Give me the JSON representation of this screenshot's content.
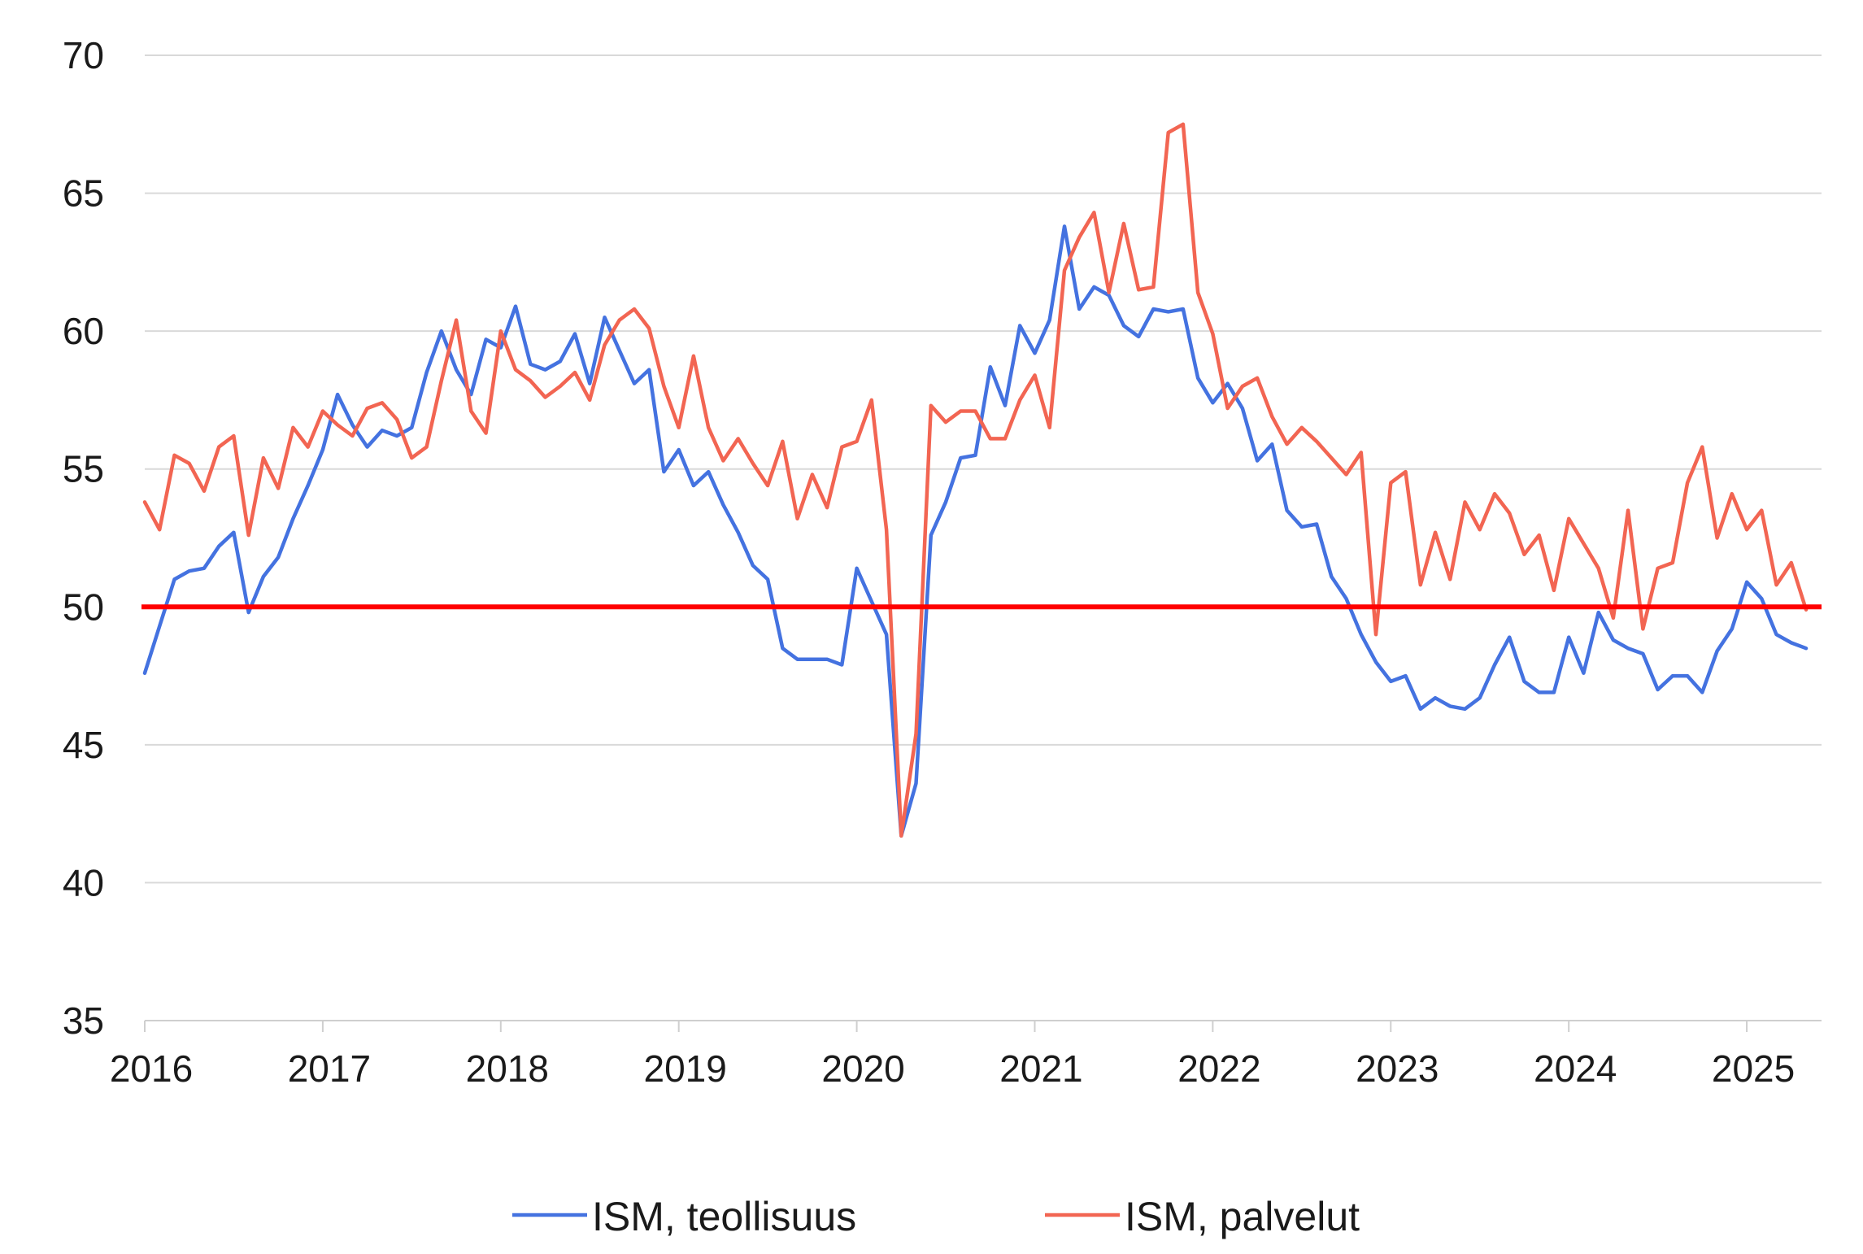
{
  "chart_data": {
    "type": "line",
    "title": "",
    "xlabel": "",
    "ylabel": "",
    "ylim": [
      35,
      70
    ],
    "yticks": [
      35,
      40,
      45,
      50,
      55,
      60,
      65,
      70
    ],
    "xlim": [
      2016.0,
      2025.42
    ],
    "xticks": [
      "2016",
      "2017",
      "2018",
      "2019",
      "2020",
      "2021",
      "2022",
      "2023",
      "2024",
      "2025"
    ],
    "grid": "horizontal",
    "legend_position": "bottom",
    "reference_line": {
      "value": 50,
      "color": "#ff0000"
    },
    "series": [
      {
        "name": "ISM, teollisuus",
        "color": "#4472e0",
        "start": "2016-01",
        "values": [
          47.6,
          49.3,
          51.0,
          51.3,
          51.4,
          52.2,
          52.7,
          49.8,
          51.1,
          51.8,
          53.2,
          54.4,
          55.7,
          57.7,
          56.6,
          55.8,
          56.4,
          56.2,
          56.5,
          58.5,
          60.0,
          58.6,
          57.7,
          59.7,
          59.4,
          60.9,
          58.8,
          58.6,
          58.9,
          59.9,
          58.1,
          60.5,
          59.3,
          58.1,
          58.6,
          54.9,
          55.7,
          54.4,
          54.9,
          53.7,
          52.7,
          51.5,
          51.0,
          48.5,
          48.1,
          48.1,
          48.1,
          47.9,
          51.4,
          50.2,
          49.0,
          41.7,
          43.6,
          52.6,
          53.8,
          55.4,
          55.5,
          58.7,
          57.3,
          60.2,
          59.2,
          60.4,
          63.8,
          60.8,
          61.6,
          61.3,
          60.2,
          59.8,
          60.8,
          60.7,
          60.8,
          58.3,
          57.4,
          58.1,
          57.2,
          55.3,
          55.9,
          53.5,
          52.9,
          53.0,
          51.1,
          50.3,
          49.0,
          48.0,
          47.3,
          47.5,
          46.3,
          46.7,
          46.4,
          46.3,
          46.7,
          47.9,
          48.9,
          47.3,
          46.9,
          46.9,
          48.9,
          47.6,
          49.8,
          48.8,
          48.5,
          48.3,
          47.0,
          47.5,
          47.5,
          46.9,
          48.4,
          49.2,
          50.9,
          50.3,
          49.0,
          48.7,
          48.5
        ]
      },
      {
        "name": "ISM, palvelut",
        "color": "#f26552",
        "start": "2016-01",
        "values": [
          53.8,
          52.8,
          55.5,
          55.2,
          54.2,
          55.8,
          56.2,
          52.6,
          55.4,
          54.3,
          56.5,
          55.8,
          57.1,
          56.6,
          56.2,
          57.2,
          57.4,
          56.8,
          55.4,
          55.8,
          58.2,
          60.4,
          57.1,
          56.3,
          60.0,
          58.6,
          58.2,
          57.6,
          58.0,
          58.5,
          57.5,
          59.5,
          60.4,
          60.8,
          60.1,
          58.0,
          56.5,
          59.1,
          56.5,
          55.3,
          56.1,
          55.2,
          54.4,
          56.0,
          53.2,
          54.8,
          53.6,
          55.8,
          56.0,
          57.5,
          52.8,
          41.7,
          45.4,
          57.3,
          56.7,
          57.1,
          57.1,
          56.1,
          56.1,
          57.5,
          58.4,
          56.5,
          62.2,
          63.4,
          64.3,
          61.4,
          63.9,
          61.5,
          61.6,
          67.2,
          67.5,
          61.4,
          59.9,
          57.2,
          58.0,
          58.3,
          56.9,
          55.9,
          56.5,
          56.0,
          55.4,
          54.8,
          55.6,
          49.0,
          54.5,
          54.9,
          50.8,
          52.7,
          51.0,
          53.8,
          52.8,
          54.1,
          53.4,
          51.9,
          52.6,
          50.6,
          53.2,
          52.3,
          51.4,
          49.6,
          53.5,
          49.2,
          51.4,
          51.6,
          54.5,
          55.8,
          52.5,
          54.1,
          52.8,
          53.5,
          50.8,
          51.6,
          49.9
        ]
      }
    ]
  }
}
